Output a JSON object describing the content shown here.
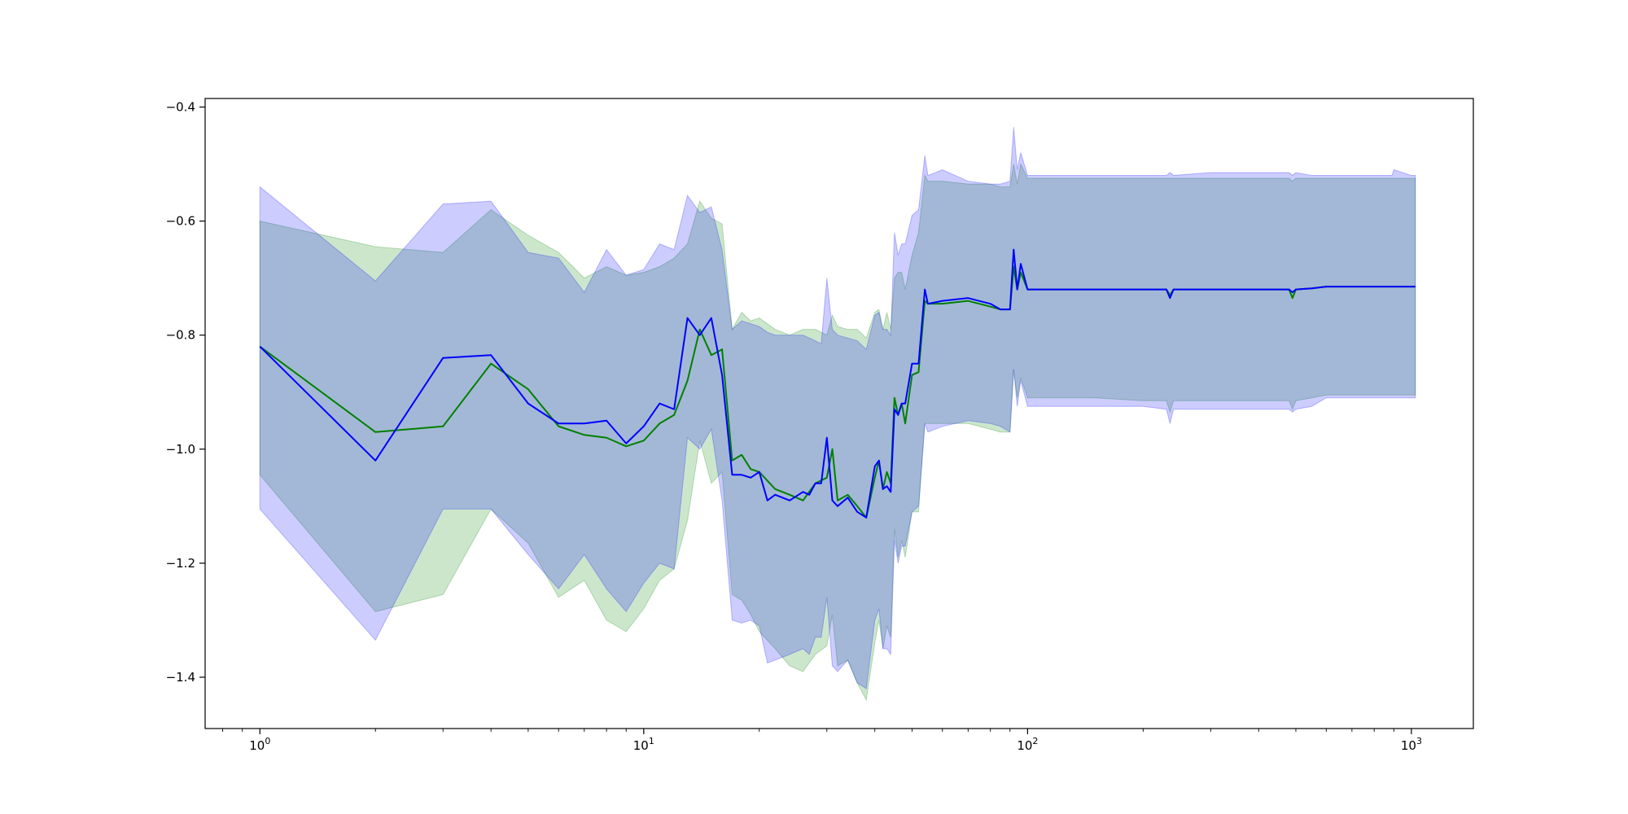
{
  "chart_data": {
    "type": "line",
    "title": "",
    "xlabel": "",
    "ylabel": "",
    "xscale": "log",
    "xlim": [
      0.72,
      1450
    ],
    "ylim": [
      -1.49,
      -0.385
    ],
    "grid": false,
    "legend": "none",
    "xticks": [
      {
        "value": 1,
        "base": "10",
        "exp": "0"
      },
      {
        "value": 10,
        "base": "10",
        "exp": "1"
      },
      {
        "value": 100,
        "base": "10",
        "exp": "2"
      },
      {
        "value": 1000,
        "base": "10",
        "exp": "3"
      }
    ],
    "yticks": [
      {
        "value": -0.4,
        "label": "−0.4"
      },
      {
        "value": -0.6,
        "label": "−0.6"
      },
      {
        "value": -0.8,
        "label": "−0.8"
      },
      {
        "value": -1.0,
        "label": "−1.0"
      },
      {
        "value": -1.2,
        "label": "−1.2"
      },
      {
        "value": -1.4,
        "label": "−1.4"
      }
    ],
    "series": [
      {
        "color": "#008000",
        "band_color": "#008000",
        "band_opacity": 0.2,
        "x": [
          1,
          2,
          3,
          4,
          5,
          6,
          7,
          8,
          9,
          10,
          11,
          12,
          13,
          14,
          15,
          16,
          17,
          18,
          19,
          20,
          22,
          24,
          26,
          28,
          30,
          31,
          32,
          34,
          36,
          38,
          40,
          41,
          42,
          43,
          44,
          45,
          46,
          47,
          48,
          50,
          52,
          54,
          55,
          60,
          70,
          80,
          85,
          90,
          92,
          94,
          96,
          100,
          150,
          200,
          230,
          235,
          240,
          300,
          400,
          480,
          490,
          500,
          550,
          600,
          800,
          890,
          900,
          1000,
          1024
        ],
        "y": [
          -0.82,
          -0.97,
          -0.96,
          -0.85,
          -0.895,
          -0.96,
          -0.975,
          -0.98,
          -0.995,
          -0.985,
          -0.955,
          -0.94,
          -0.88,
          -0.79,
          -0.835,
          -0.825,
          -1.02,
          -1.01,
          -1.035,
          -1.04,
          -1.07,
          -1.08,
          -1.09,
          -1.06,
          -1.05,
          -1.0,
          -1.09,
          -1.08,
          -1.1,
          -1.12,
          -1.05,
          -1.02,
          -1.07,
          -1.04,
          -1.06,
          -0.91,
          -0.94,
          -0.92,
          -0.955,
          -0.87,
          -0.865,
          -0.74,
          -0.745,
          -0.745,
          -0.74,
          -0.75,
          -0.755,
          -0.755,
          -0.68,
          -0.72,
          -0.69,
          -0.72,
          -0.72,
          -0.72,
          -0.72,
          -0.73,
          -0.72,
          -0.72,
          -0.72,
          -0.72,
          -0.735,
          -0.72,
          -0.718,
          -0.715,
          -0.715,
          -0.715,
          -0.715,
          -0.715,
          -0.715
        ],
        "upper": [
          -0.6,
          -0.645,
          -0.655,
          -0.58,
          -0.625,
          -0.655,
          -0.7,
          -0.68,
          -0.695,
          -0.69,
          -0.68,
          -0.665,
          -0.64,
          -0.565,
          -0.595,
          -0.605,
          -0.79,
          -0.76,
          -0.775,
          -0.77,
          -0.79,
          -0.8,
          -0.79,
          -0.79,
          -0.8,
          -0.765,
          -0.785,
          -0.79,
          -0.79,
          -0.805,
          -0.76,
          -0.755,
          -0.79,
          -0.76,
          -0.79,
          -0.7,
          -0.69,
          -0.69,
          -0.72,
          -0.66,
          -0.62,
          -0.52,
          -0.53,
          -0.53,
          -0.535,
          -0.535,
          -0.54,
          -0.54,
          -0.5,
          -0.535,
          -0.5,
          -0.525,
          -0.525,
          -0.525,
          -0.525,
          -0.525,
          -0.525,
          -0.525,
          -0.525,
          -0.525,
          -0.53,
          -0.525,
          -0.525,
          -0.525,
          -0.525,
          -0.525,
          -0.525,
          -0.525,
          -0.525
        ],
        "lower": [
          -1.045,
          -1.285,
          -1.255,
          -1.105,
          -1.165,
          -1.26,
          -1.23,
          -1.3,
          -1.32,
          -1.28,
          -1.23,
          -1.21,
          -1.125,
          -0.985,
          -1.06,
          -1.04,
          -1.255,
          -1.265,
          -1.29,
          -1.32,
          -1.35,
          -1.38,
          -1.39,
          -1.36,
          -1.345,
          -1.29,
          -1.38,
          -1.37,
          -1.41,
          -1.44,
          -1.34,
          -1.3,
          -1.35,
          -1.31,
          -1.33,
          -1.14,
          -1.19,
          -1.16,
          -1.19,
          -1.11,
          -1.11,
          -0.955,
          -0.955,
          -0.955,
          -0.955,
          -0.965,
          -0.97,
          -0.97,
          -0.86,
          -0.91,
          -0.875,
          -0.91,
          -0.91,
          -0.915,
          -0.915,
          -0.935,
          -0.915,
          -0.915,
          -0.915,
          -0.915,
          -0.93,
          -0.915,
          -0.91,
          -0.905,
          -0.905,
          -0.905,
          -0.905,
          -0.905,
          -0.905
        ]
      },
      {
        "color": "#0000ff",
        "band_color": "#0000ff",
        "band_opacity": 0.2,
        "x": [
          1,
          2,
          3,
          4,
          5,
          6,
          7,
          8,
          9,
          10,
          11,
          12,
          13,
          14,
          15,
          16,
          17,
          18,
          19,
          20,
          21,
          22,
          24,
          26,
          27,
          28,
          29,
          30,
          31,
          32,
          34,
          36,
          38,
          40,
          41,
          42,
          43,
          44,
          45,
          46,
          47,
          48,
          50,
          52,
          54,
          55,
          60,
          70,
          80,
          85,
          90,
          92,
          94,
          96,
          100,
          150,
          200,
          230,
          235,
          240,
          300,
          400,
          480,
          490,
          500,
          550,
          600,
          800,
          890,
          900,
          1000,
          1024
        ],
        "y": [
          -0.82,
          -1.02,
          -0.84,
          -0.835,
          -0.92,
          -0.955,
          -0.955,
          -0.95,
          -0.99,
          -0.96,
          -0.92,
          -0.93,
          -0.77,
          -0.8,
          -0.77,
          -0.87,
          -1.045,
          -1.045,
          -1.05,
          -1.04,
          -1.09,
          -1.08,
          -1.09,
          -1.075,
          -1.08,
          -1.06,
          -1.06,
          -0.98,
          -1.09,
          -1.1,
          -1.085,
          -1.11,
          -1.12,
          -1.03,
          -1.02,
          -1.07,
          -1.065,
          -1.075,
          -0.93,
          -0.94,
          -0.92,
          -0.92,
          -0.85,
          -0.85,
          -0.72,
          -0.745,
          -0.74,
          -0.735,
          -0.745,
          -0.755,
          -0.755,
          -0.65,
          -0.72,
          -0.675,
          -0.72,
          -0.72,
          -0.72,
          -0.72,
          -0.735,
          -0.72,
          -0.72,
          -0.72,
          -0.72,
          -0.725,
          -0.72,
          -0.718,
          -0.715,
          -0.715,
          -0.715,
          -0.715,
          -0.715,
          -0.715
        ],
        "upper": [
          -0.54,
          -0.705,
          -0.57,
          -0.565,
          -0.655,
          -0.665,
          -0.725,
          -0.65,
          -0.695,
          -0.685,
          -0.64,
          -0.65,
          -0.555,
          -0.585,
          -0.575,
          -0.65,
          -0.79,
          -0.775,
          -0.78,
          -0.785,
          -0.795,
          -0.8,
          -0.8,
          -0.8,
          -0.805,
          -0.81,
          -0.815,
          -0.7,
          -0.79,
          -0.8,
          -0.805,
          -0.81,
          -0.825,
          -0.765,
          -0.76,
          -0.79,
          -0.79,
          -0.8,
          -0.62,
          -0.66,
          -0.64,
          -0.64,
          -0.59,
          -0.58,
          -0.485,
          -0.52,
          -0.51,
          -0.53,
          -0.535,
          -0.535,
          -0.53,
          -0.435,
          -0.51,
          -0.48,
          -0.52,
          -0.52,
          -0.52,
          -0.52,
          -0.515,
          -0.52,
          -0.515,
          -0.515,
          -0.515,
          -0.52,
          -0.515,
          -0.52,
          -0.52,
          -0.52,
          -0.52,
          -0.51,
          -0.52,
          -0.52
        ],
        "lower": [
          -1.105,
          -1.335,
          -1.105,
          -1.105,
          -1.185,
          -1.245,
          -1.185,
          -1.245,
          -1.285,
          -1.235,
          -1.2,
          -1.21,
          -0.98,
          -1.0,
          -0.965,
          -1.09,
          -1.3,
          -1.305,
          -1.3,
          -1.31,
          -1.375,
          -1.37,
          -1.36,
          -1.35,
          -1.36,
          -1.33,
          -1.33,
          -1.26,
          -1.38,
          -1.39,
          -1.37,
          -1.41,
          -1.42,
          -1.3,
          -1.28,
          -1.35,
          -1.35,
          -1.36,
          -1.16,
          -1.2,
          -1.17,
          -1.17,
          -1.11,
          -1.1,
          -0.955,
          -0.97,
          -0.96,
          -0.95,
          -0.955,
          -0.96,
          -0.97,
          -0.86,
          -0.925,
          -0.88,
          -0.925,
          -0.925,
          -0.925,
          -0.93,
          -0.955,
          -0.93,
          -0.93,
          -0.93,
          -0.93,
          -0.935,
          -0.93,
          -0.925,
          -0.91,
          -0.91,
          -0.91,
          -0.91,
          -0.91,
          -0.91
        ]
      }
    ]
  }
}
